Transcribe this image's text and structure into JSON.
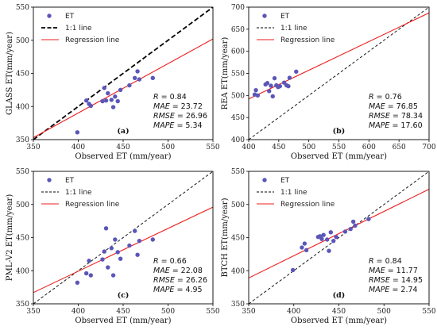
{
  "chart_data": [
    {
      "type": "scatter",
      "panel_label": "(a)",
      "xlabel": "Observed ET (mm/year)",
      "ylabel": "GLASS ET(mm/year)",
      "xlim": [
        350,
        550
      ],
      "ylim": [
        350,
        550
      ],
      "xticks": [
        "350",
        "400",
        "450",
        "500",
        "550"
      ],
      "yticks": [
        "350",
        "400",
        "450",
        "500",
        "550"
      ],
      "legend": {
        "position": "top-left",
        "entries": [
          {
            "label": "ET",
            "kind": "marker",
            "color": "#5b56b8"
          },
          {
            "label": "1:1 line",
            "kind": "dashed-bold",
            "color": "#000000"
          },
          {
            "label": "Regression line",
            "kind": "line",
            "color": "#ee1c1c"
          }
        ]
      },
      "points": [
        {
          "x": 399,
          "y": 361
        },
        {
          "x": 409,
          "y": 409
        },
        {
          "x": 412,
          "y": 404
        },
        {
          "x": 414,
          "y": 401
        },
        {
          "x": 427,
          "y": 408
        },
        {
          "x": 429,
          "y": 428
        },
        {
          "x": 431,
          "y": 409
        },
        {
          "x": 433,
          "y": 420
        },
        {
          "x": 437,
          "y": 410
        },
        {
          "x": 439,
          "y": 399
        },
        {
          "x": 441,
          "y": 415
        },
        {
          "x": 444,
          "y": 408
        },
        {
          "x": 447,
          "y": 425
        },
        {
          "x": 457,
          "y": 432
        },
        {
          "x": 463,
          "y": 443
        },
        {
          "x": 466,
          "y": 453
        },
        {
          "x": 468,
          "y": 441
        },
        {
          "x": 483,
          "y": 443
        }
      ],
      "one_to_one": true,
      "regression": {
        "x0": 350,
        "y0": 353,
        "x1": 550,
        "y1": 502
      },
      "stats": [
        {
          "name": "R",
          "value": "= 0.84"
        },
        {
          "name": "MAE",
          "value": "= 23.72"
        },
        {
          "name": "RMSE",
          "value": "= 26.96"
        },
        {
          "name": "MAPE",
          "value": "= 5.34"
        }
      ]
    },
    {
      "type": "scatter",
      "panel_label": "(b)",
      "xlabel": "Observed ET (mm/year)",
      "ylabel": "REA ET(mm/year)",
      "xlim": [
        400,
        700
      ],
      "ylim": [
        400,
        700
      ],
      "xticks": [
        "400",
        "450",
        "500",
        "550",
        "600",
        "650",
        "700"
      ],
      "yticks": [
        "400",
        "450",
        "500",
        "550",
        "600",
        "650",
        "700"
      ],
      "legend": {
        "position": "top-left",
        "entries": [
          {
            "label": "ET",
            "kind": "marker",
            "color": "#5b56b8"
          },
          {
            "label": "1:1 line",
            "kind": "dashed",
            "color": "#000000"
          },
          {
            "label": "Regression line",
            "kind": "line",
            "color": "#ee1c1c"
          }
        ]
      },
      "points": [
        {
          "x": 410,
          "y": 502
        },
        {
          "x": 412,
          "y": 512
        },
        {
          "x": 415,
          "y": 500
        },
        {
          "x": 428,
          "y": 525
        },
        {
          "x": 431,
          "y": 528
        },
        {
          "x": 434,
          "y": 510
        },
        {
          "x": 437,
          "y": 522
        },
        {
          "x": 440,
          "y": 498
        },
        {
          "x": 443,
          "y": 539
        },
        {
          "x": 446,
          "y": 523
        },
        {
          "x": 449,
          "y": 519
        },
        {
          "x": 452,
          "y": 521
        },
        {
          "x": 459,
          "y": 529
        },
        {
          "x": 463,
          "y": 523
        },
        {
          "x": 466,
          "y": 521
        },
        {
          "x": 468,
          "y": 540
        },
        {
          "x": 479,
          "y": 554
        }
      ],
      "one_to_one": true,
      "regression": {
        "x0": 400,
        "y0": 492,
        "x1": 700,
        "y1": 687
      },
      "stats": [
        {
          "name": "R",
          "value": "= 0.76"
        },
        {
          "name": "MAE",
          "value": "= 76.85"
        },
        {
          "name": "RMSE",
          "value": "= 78.34"
        },
        {
          "name": "MAPE",
          "value": "= 17.60"
        }
      ]
    },
    {
      "type": "scatter",
      "panel_label": "(c)",
      "xlabel": "Observed ET (mm/year)",
      "ylabel": "PML-V2 ET(mm/year)",
      "xlim": [
        350,
        550
      ],
      "ylim": [
        350,
        550
      ],
      "xticks": [
        "350",
        "400",
        "450",
        "500",
        "550"
      ],
      "yticks": [
        "350",
        "400",
        "450",
        "500",
        "550"
      ],
      "legend": {
        "position": "top-left",
        "entries": [
          {
            "label": "ET",
            "kind": "marker",
            "color": "#5b56b8"
          },
          {
            "label": "1:1 line",
            "kind": "dashed",
            "color": "#000000"
          },
          {
            "label": "Regression line",
            "kind": "line",
            "color": "#ee1c1c"
          }
        ]
      },
      "points": [
        {
          "x": 399,
          "y": 382
        },
        {
          "x": 409,
          "y": 396
        },
        {
          "x": 412,
          "y": 415
        },
        {
          "x": 414,
          "y": 393
        },
        {
          "x": 427,
          "y": 417
        },
        {
          "x": 429,
          "y": 429
        },
        {
          "x": 431,
          "y": 464
        },
        {
          "x": 433,
          "y": 405
        },
        {
          "x": 437,
          "y": 434
        },
        {
          "x": 439,
          "y": 393
        },
        {
          "x": 441,
          "y": 447
        },
        {
          "x": 444,
          "y": 428
        },
        {
          "x": 447,
          "y": 418
        },
        {
          "x": 457,
          "y": 438
        },
        {
          "x": 463,
          "y": 460
        },
        {
          "x": 466,
          "y": 424
        },
        {
          "x": 468,
          "y": 445
        },
        {
          "x": 483,
          "y": 447
        }
      ],
      "one_to_one": true,
      "regression": {
        "x0": 350,
        "y0": 367,
        "x1": 550,
        "y1": 496
      },
      "stats": [
        {
          "name": "R",
          "value": "= 0.66"
        },
        {
          "name": "MAE",
          "value": "= 22.08"
        },
        {
          "name": "RMSE",
          "value": "= 26.26"
        },
        {
          "name": "MAPE",
          "value": "= 4.95"
        }
      ]
    },
    {
      "type": "scatter",
      "panel_label": "(d)",
      "xlabel": "Observed ET (mm/year)",
      "ylabel": "BTCH ET(mm/year)",
      "xlim": [
        350,
        550
      ],
      "ylim": [
        350,
        550
      ],
      "xticks": [
        "350",
        "400",
        "450",
        "500",
        "550"
      ],
      "yticks": [
        "350",
        "400",
        "450",
        "500",
        "550"
      ],
      "legend": {
        "position": "top-left",
        "entries": [
          {
            "label": "ET",
            "kind": "marker",
            "color": "#5b56b8"
          },
          {
            "label": "1:1 line",
            "kind": "dashed",
            "color": "#000000"
          },
          {
            "label": "Regression line",
            "kind": "line",
            "color": "#ee1c1c"
          }
        ]
      },
      "points": [
        {
          "x": 399,
          "y": 401
        },
        {
          "x": 409,
          "y": 435
        },
        {
          "x": 412,
          "y": 441
        },
        {
          "x": 414,
          "y": 431
        },
        {
          "x": 427,
          "y": 451
        },
        {
          "x": 429,
          "y": 452
        },
        {
          "x": 431,
          "y": 448
        },
        {
          "x": 433,
          "y": 454
        },
        {
          "x": 437,
          "y": 447
        },
        {
          "x": 439,
          "y": 430
        },
        {
          "x": 441,
          "y": 458
        },
        {
          "x": 444,
          "y": 445
        },
        {
          "x": 447,
          "y": 451
        },
        {
          "x": 457,
          "y": 459
        },
        {
          "x": 463,
          "y": 463
        },
        {
          "x": 466,
          "y": 474
        },
        {
          "x": 468,
          "y": 468
        },
        {
          "x": 483,
          "y": 478
        }
      ],
      "one_to_one": true,
      "regression": {
        "x0": 350,
        "y0": 389,
        "x1": 550,
        "y1": 523
      },
      "stats": [
        {
          "name": "R",
          "value": "= 0.84"
        },
        {
          "name": "MAE",
          "value": "= 11.77"
        },
        {
          "name": "RMSE",
          "value": "= 14.95"
        },
        {
          "name": "MAPE",
          "value": "= 2.74"
        }
      ]
    }
  ]
}
